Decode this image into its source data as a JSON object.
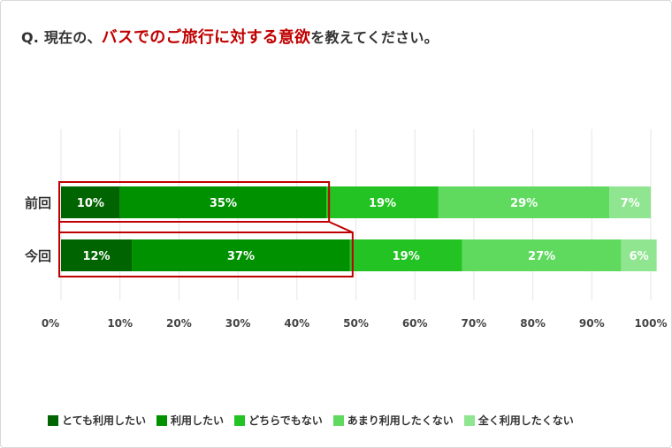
{
  "title": {
    "prefix": "Q. 現在の、",
    "highlight": "バスでのご旅行に対する意欲",
    "suffix": "を教えてください。"
  },
  "colors": {
    "series": [
      "#006400",
      "#009100",
      "#22c322",
      "#5fda5f",
      "#90e690"
    ],
    "grid": "#e6e6e6",
    "highlight_box": "#c00000",
    "bar_text": "#ffffff",
    "axis_text": "#444444"
  },
  "chart_data": {
    "type": "bar",
    "orientation": "horizontal",
    "stacked": true,
    "categories": [
      "前回",
      "今回"
    ],
    "series": [
      {
        "name": "とても利用したい",
        "values": [
          10,
          12
        ]
      },
      {
        "name": "利用したい",
        "values": [
          35,
          37
        ]
      },
      {
        "name": "どちらでもない",
        "values": [
          19,
          19
        ]
      },
      {
        "name": "あまり利用したくない",
        "values": [
          29,
          27
        ]
      },
      {
        "name": "全く利用したくない",
        "values": [
          7,
          6
        ]
      }
    ],
    "data_labels": [
      [
        "10%",
        "35%",
        "19%",
        "29%",
        "7%"
      ],
      [
        "12%",
        "37%",
        "19%",
        "27%",
        "6%"
      ]
    ],
    "x_ticks": [
      "0%",
      "10%",
      "20%",
      "30%",
      "40%",
      "50%",
      "60%",
      "70%",
      "80%",
      "90%",
      "100%"
    ],
    "xlim": [
      0,
      100
    ],
    "grid": true,
    "legend_position": "bottom",
    "highlight": "前回・今回の「とても利用したい」＋「利用したい」を赤枠で強調"
  }
}
